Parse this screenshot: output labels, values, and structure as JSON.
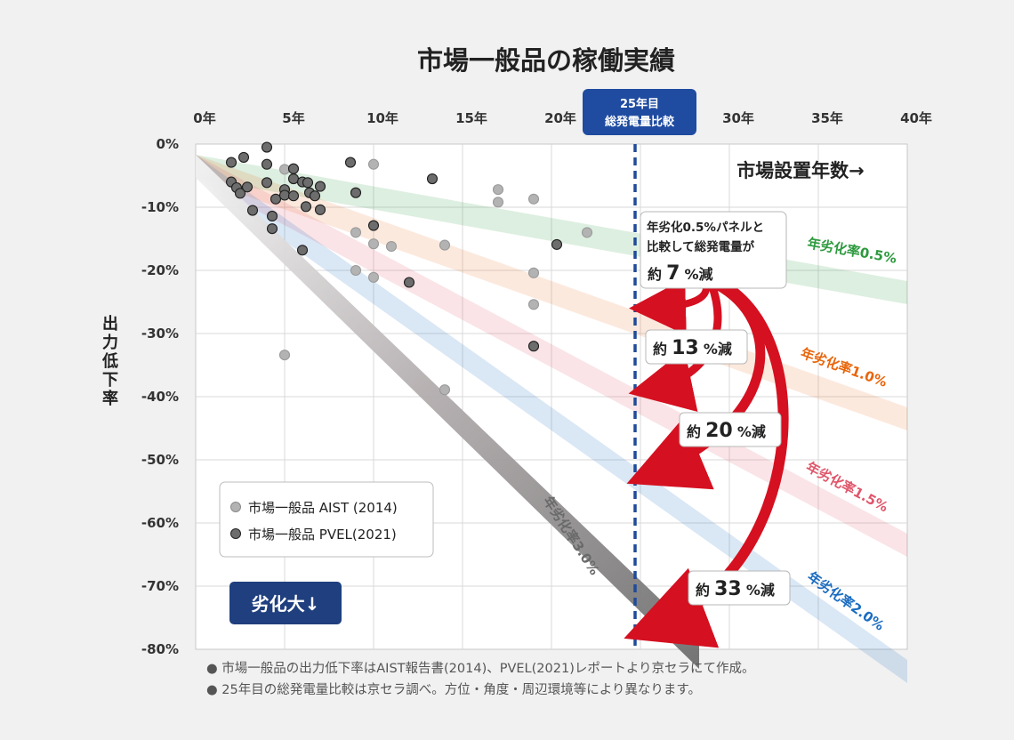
{
  "chart_data": {
    "type": "scatter",
    "title": "市場一般品の稼働実績",
    "ylabel": "出力低下率",
    "xlabel": "市場設置年数→",
    "x_ticks": [
      "0年",
      "5年",
      "10年",
      "15年",
      "20年",
      "30年",
      "35年",
      "40年"
    ],
    "y_ticks": [
      "0%",
      "-10%",
      "-20%",
      "-30%",
      "-40%",
      "-50%",
      "-60%",
      "-70%",
      "-80%"
    ],
    "xlim": [
      0,
      40
    ],
    "ylim": [
      -80,
      0
    ],
    "grid": true,
    "legend_position": "bottom-left",
    "series": [
      {
        "name": "市場一般品 AIST (2014)",
        "color": "#b3b3b3",
        "points": [
          {
            "x": 5,
            "y": -4
          },
          {
            "x": 10,
            "y": -3.2
          },
          {
            "x": 9,
            "y": -14
          },
          {
            "x": 10,
            "y": -15.8
          },
          {
            "x": 11,
            "y": -16.2
          },
          {
            "x": 9,
            "y": -20
          },
          {
            "x": 10,
            "y": -21.1
          },
          {
            "x": 14,
            "y": -16
          },
          {
            "x": 17,
            "y": -7.2
          },
          {
            "x": 17,
            "y": -9.2
          },
          {
            "x": 19,
            "y": -8.7
          },
          {
            "x": 19,
            "y": -20.4
          },
          {
            "x": 19,
            "y": -25.4
          },
          {
            "x": 22,
            "y": -14
          },
          {
            "x": 5,
            "y": -33.4
          },
          {
            "x": 14,
            "y": -38.9
          }
        ]
      },
      {
        "name": "市場一般品 PVEL(2021)",
        "color": "#6d6d6d",
        "points": [
          {
            "x": 2,
            "y": -2.9
          },
          {
            "x": 2.7,
            "y": -2.1
          },
          {
            "x": 2,
            "y": -6
          },
          {
            "x": 2.3,
            "y": -6.9
          },
          {
            "x": 2.5,
            "y": -7.8
          },
          {
            "x": 2.9,
            "y": -6.8
          },
          {
            "x": 3.2,
            "y": -10.5
          },
          {
            "x": 4,
            "y": -0.5
          },
          {
            "x": 4,
            "y": -3.2
          },
          {
            "x": 4,
            "y": -6.1
          },
          {
            "x": 4.5,
            "y": -8.7
          },
          {
            "x": 4.3,
            "y": -11.4
          },
          {
            "x": 4.3,
            "y": -13.4
          },
          {
            "x": 5,
            "y": -7.2
          },
          {
            "x": 5,
            "y": -8.1
          },
          {
            "x": 5.5,
            "y": -3.9
          },
          {
            "x": 5.5,
            "y": -5.5
          },
          {
            "x": 5.5,
            "y": -8.2
          },
          {
            "x": 6,
            "y": -6
          },
          {
            "x": 6.3,
            "y": -6.1
          },
          {
            "x": 6.2,
            "y": -9.9
          },
          {
            "x": 6.4,
            "y": -7.7
          },
          {
            "x": 6.7,
            "y": -8.2
          },
          {
            "x": 7,
            "y": -6.7
          },
          {
            "x": 7,
            "y": -10.4
          },
          {
            "x": 6,
            "y": -16.8
          },
          {
            "x": 8.7,
            "y": -2.9
          },
          {
            "x": 9,
            "y": -7.7
          },
          {
            "x": 10,
            "y": -12.9
          },
          {
            "x": 12,
            "y": -21.9
          },
          {
            "x": 13.3,
            "y": -5.5
          },
          {
            "x": 19,
            "y": -32
          },
          {
            "x": 20.3,
            "y": -15.9
          }
        ]
      }
    ],
    "degradation_bands": [
      {
        "label": "年劣化率0.5%",
        "rate": 0.5,
        "color": "#2d9a3e"
      },
      {
        "label": "年劣化率1.0%",
        "rate": 1.0,
        "color": "#e9650b"
      },
      {
        "label": "年劣化率1.5%",
        "rate": 1.5,
        "color": "#e0566a"
      },
      {
        "label": "年劣化率2.0%",
        "rate": 2.0,
        "color": "#1a6cc1"
      },
      {
        "label": "年劣化率3.0%",
        "rate": 3.0,
        "color": "#6a6a6a"
      }
    ],
    "comparison_year": 25,
    "comparison_marker": {
      "line1": "25年目",
      "line2": "総発電量比較"
    },
    "reduction_callouts": [
      {
        "desc_line1": "年劣化0.5%パネルと",
        "desc_line2": "比較して総発電量が",
        "prefix": "約",
        "value": "7",
        "suffix": "%減",
        "target_y": -26
      },
      {
        "prefix": "約",
        "value": "13",
        "suffix": "%減",
        "target_y": -39
      },
      {
        "prefix": "約",
        "value": "20",
        "suffix": "%減",
        "target_y": -52
      },
      {
        "prefix": "約",
        "value": "33",
        "suffix": "%減",
        "target_y": -77
      }
    ],
    "big_label": "劣化大↓",
    "footnotes": [
      "● 市場一般品の出力低下率はAIST報告書(2014)、PVEL(2021)レポートより京セラにて作成。",
      "● 25年目の総発電量比較は京セラ調べ。方位・角度・周辺環境等により異なります。"
    ]
  }
}
